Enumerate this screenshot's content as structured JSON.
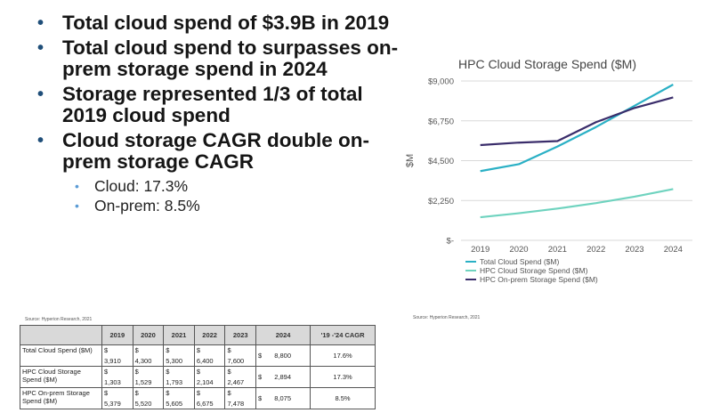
{
  "bullets": [
    {
      "text": "Total cloud spend of $3.9B in 2019"
    },
    {
      "text": "Total cloud spend to surpasses on-prem storage spend in 2024"
    },
    {
      "text": "Storage represented 1/3 of total 2019 cloud spend"
    },
    {
      "text": "Cloud storage CAGR double on-prem storage CAGR"
    }
  ],
  "sub_bullets": [
    {
      "text": "Cloud: 17.3%"
    },
    {
      "text": "On-prem: 8.5%"
    }
  ],
  "source_left": "Source: Hyperion Research, 2021",
  "source_right": "Source: Hyperion Research, 2021",
  "chart_data": {
    "type": "line",
    "title": "HPC Cloud Storage Spend ($M)",
    "ylabel": "$M",
    "xlabel": "",
    "categories": [
      "2019",
      "2020",
      "2021",
      "2022",
      "2023",
      "2024"
    ],
    "y_ticks": [
      "$9,000",
      "$6,750",
      "$4,500",
      "$2,250",
      "$-"
    ],
    "ylim": [
      0,
      9000
    ],
    "grid": true,
    "legend_position": "bottom",
    "series": [
      {
        "name": "Total Cloud Spend ($M)",
        "color": "#2ab0c5",
        "values": [
          3910,
          4300,
          5300,
          6400,
          7600,
          8800
        ]
      },
      {
        "name": "HPC Cloud Storage Spend ($M)",
        "color": "#6fd3bf",
        "values": [
          1303,
          1529,
          1793,
          2104,
          2467,
          2894
        ]
      },
      {
        "name": "HPC On-prem Storage Spend ($M)",
        "color": "#3a2d6b",
        "values": [
          5379,
          5520,
          5605,
          6675,
          7478,
          8075
        ]
      }
    ]
  },
  "table": {
    "headers": [
      "",
      "2019",
      "2020",
      "2021",
      "2022",
      "2023",
      "2024",
      "'19 -'24 CAGR"
    ],
    "rows": [
      {
        "label": "Total Cloud Spend ($M)",
        "cells": [
          "3,910",
          "4,300",
          "5,300",
          "6,400",
          "7,600"
        ],
        "v2024": "8,800",
        "cagr": "17.6%"
      },
      {
        "label": "HPC Cloud Storage Spend ($M)",
        "cells": [
          "1,303",
          "1,529",
          "1,793",
          "2,104",
          "2,467"
        ],
        "v2024": "2,894",
        "cagr": "17.3%"
      },
      {
        "label": "HPC On-prem Storage Spend ($M)",
        "cells": [
          "5,379",
          "5,520",
          "5,605",
          "6,675",
          "7,478"
        ],
        "v2024": "8,075",
        "cagr": "8.5%"
      }
    ],
    "dollar": "$"
  }
}
